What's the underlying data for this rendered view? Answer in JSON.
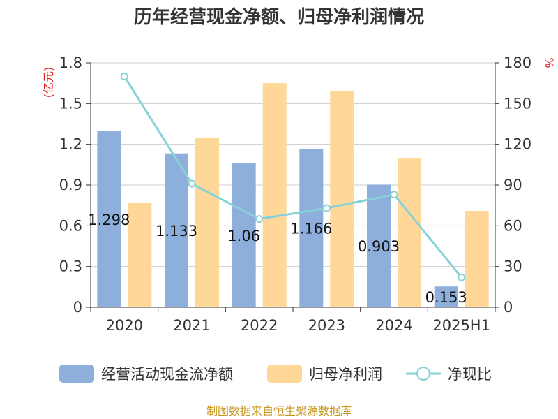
{
  "chart_data": {
    "type": "bar",
    "title": "历年经营现金净额、归母净利润情况",
    "categories": [
      "2020",
      "2021",
      "2022",
      "2023",
      "2024",
      "2025H1"
    ],
    "series": [
      {
        "name": "经营活动现金流净额",
        "axis": "left",
        "kind": "bar",
        "color": "#8eaedb",
        "values": [
          1.298,
          1.133,
          1.06,
          1.166,
          0.903,
          0.153
        ],
        "labels": [
          "1.298",
          "1.133",
          "1.06",
          "1.166",
          "0.903",
          "0.153"
        ]
      },
      {
        "name": "归母净利润",
        "axis": "left",
        "kind": "bar",
        "color": "#ffd798",
        "values": [
          0.77,
          1.25,
          1.65,
          1.59,
          1.1,
          0.71
        ]
      },
      {
        "name": "净现比",
        "axis": "right",
        "kind": "line",
        "color": "#86d2d8",
        "values": [
          170,
          91,
          65,
          73,
          83,
          22
        ]
      }
    ],
    "y_left": {
      "unit": "(亿元)",
      "ylim": [
        0,
        1.8
      ],
      "ticks": [
        "0",
        "0.3",
        "0.6",
        "0.9",
        "1.2",
        "1.5",
        "1.8"
      ]
    },
    "y_right": {
      "unit": "%",
      "ylim": [
        0,
        180
      ],
      "ticks": [
        "0",
        "30",
        "60",
        "90",
        "120",
        "150",
        "180"
      ]
    },
    "grid": true,
    "legend_position": "bottom"
  },
  "source": "制图数据来自恒生聚源数据库"
}
